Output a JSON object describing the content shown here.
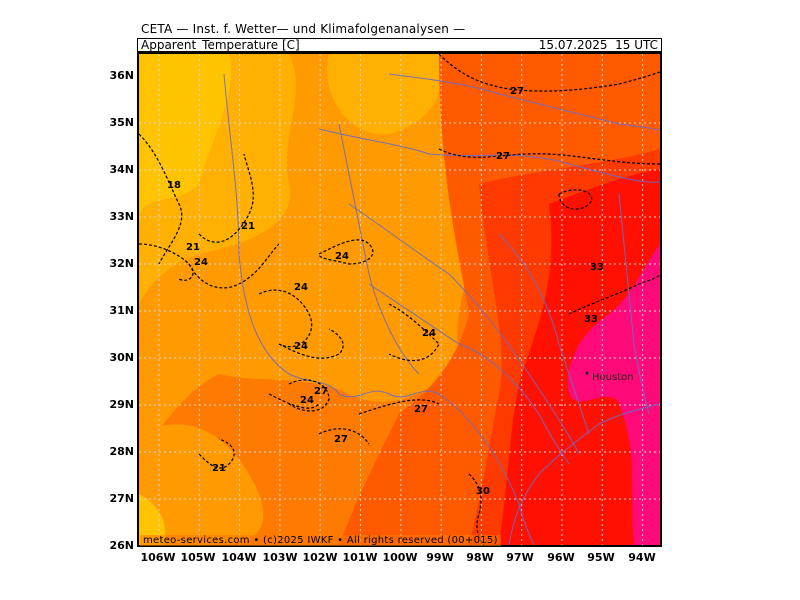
{
  "header": {
    "model_title": "CETA — Inst. f. Wetter— und Klimafolgenanalysen —",
    "parameter": "Apparent_Temperature [C]",
    "valid_time": "15.07.2025  15 UTC"
  },
  "axes": {
    "latitudes": [
      "36N",
      "35N",
      "34N",
      "33N",
      "32N",
      "31N",
      "30N",
      "29N",
      "28N",
      "27N",
      "26N"
    ],
    "longitudes": [
      "106W",
      "105W",
      "104W",
      "103W",
      "102W",
      "101W",
      "100W",
      "99W",
      "98W",
      "97W",
      "96W",
      "95W",
      "94W"
    ]
  },
  "contour_labels": [
    {
      "text": "27"
    },
    {
      "text": "27"
    },
    {
      "text": "18"
    },
    {
      "text": "21"
    },
    {
      "text": "21"
    },
    {
      "text": "24"
    },
    {
      "text": "24"
    },
    {
      "text": "33"
    },
    {
      "text": "24"
    },
    {
      "text": "33"
    },
    {
      "text": "24"
    },
    {
      "text": "24"
    },
    {
      "text": "27"
    },
    {
      "text": "24"
    },
    {
      "text": "27"
    },
    {
      "text": "27"
    },
    {
      "text": "21"
    },
    {
      "text": "30"
    }
  ],
  "cities": [
    {
      "name": "Houston"
    }
  ],
  "footer": {
    "copyright": "meteo-services.com • (c)2025 IWKF • All rights reserved (00+015)"
  },
  "colors": {
    "t15_18": "#ffc400",
    "t18_21": "#ffb000",
    "t21_24": "#ff9a00",
    "t24_27": "#ff7a00",
    "t27_30": "#ff5a00",
    "t30_33": "#ff3a00",
    "t33_36": "#ff1000",
    "t36_39": "#ff0a78",
    "grid": "#d8d8d8",
    "water": "#6a6acd"
  }
}
